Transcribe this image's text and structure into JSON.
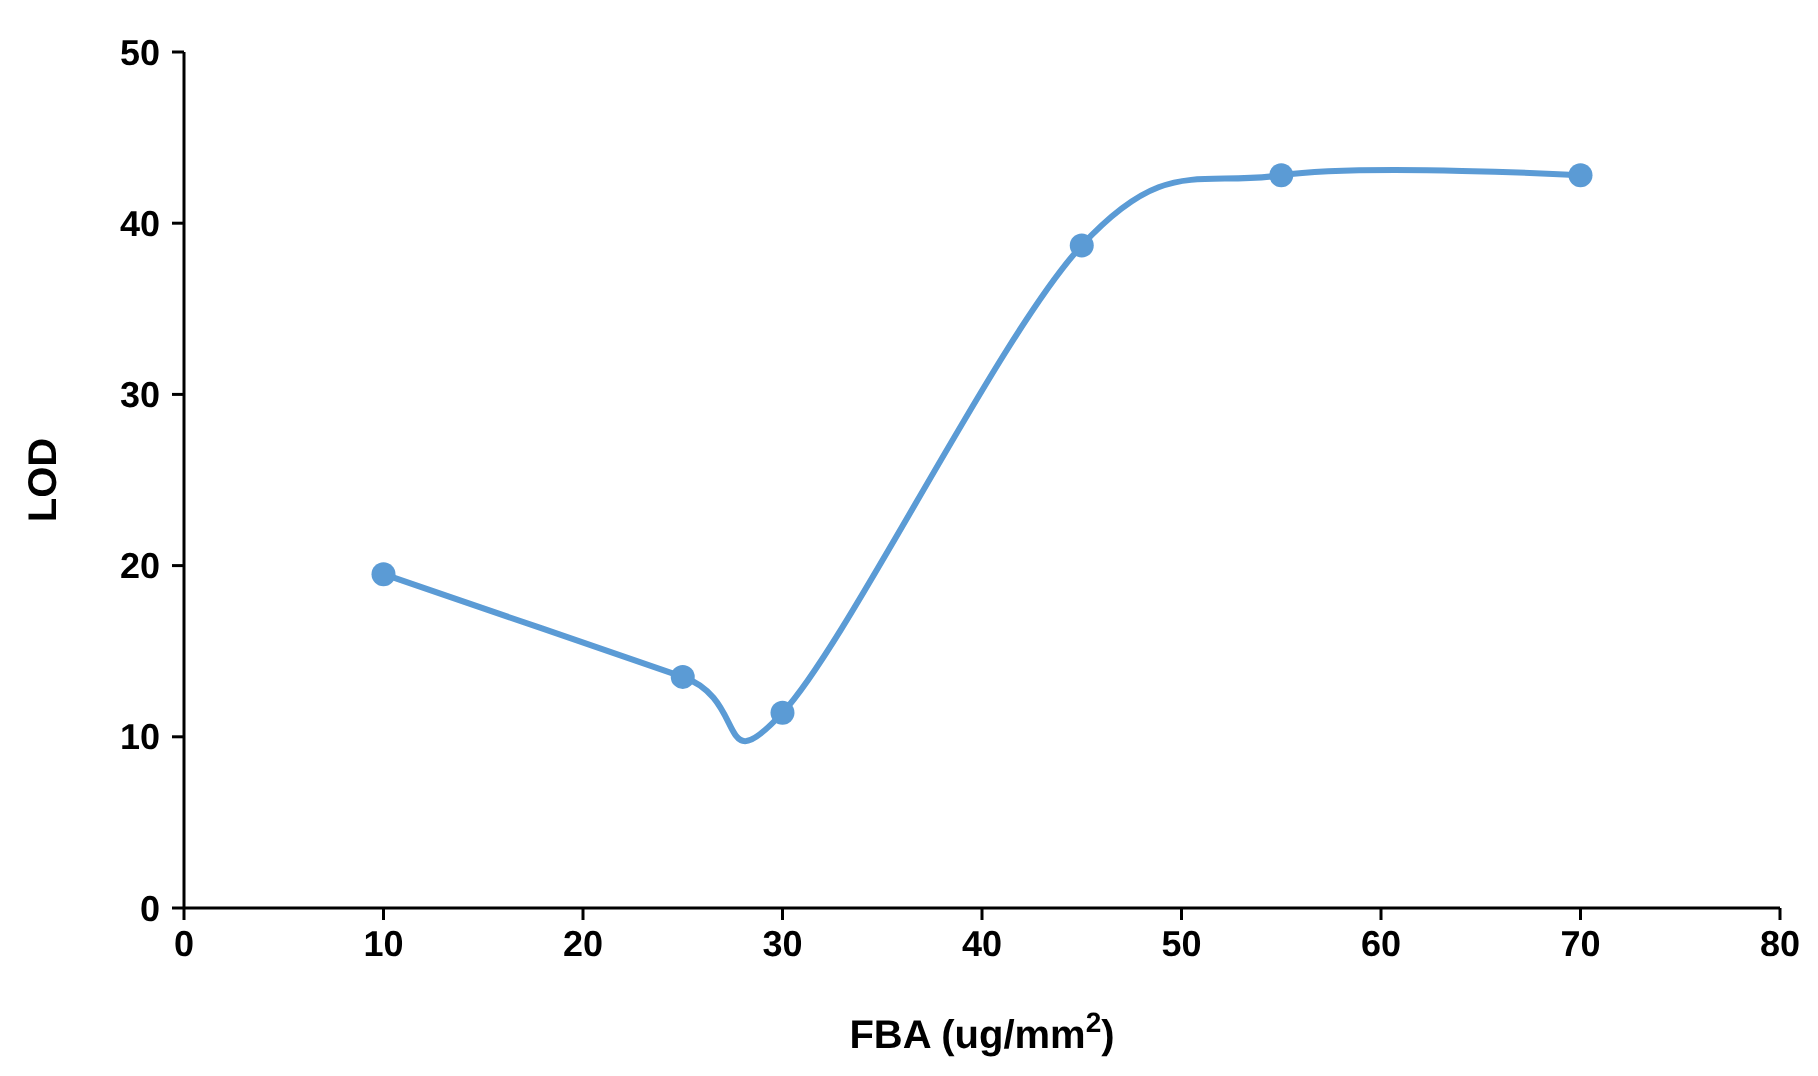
{
  "chart_data": {
    "type": "line",
    "xlabel": "FBA (ug/mm$^{2}$)",
    "ylabel": "LOD",
    "x": [
      10,
      25,
      30,
      45,
      55,
      70
    ],
    "series": [
      {
        "color": "#5b9bd5",
        "values": [
          19.5,
          13.5,
          11.4,
          38.7,
          42.8,
          42.8
        ]
      }
    ],
    "xlim": [
      0,
      80
    ],
    "xticks": [
      0,
      10,
      20,
      30,
      40,
      50,
      60,
      70,
      80
    ],
    "ylim": [
      0,
      50
    ],
    "yticks": [
      0,
      10,
      20,
      30,
      40,
      50
    ],
    "grid": false,
    "marker": "circle",
    "line_style": "solid"
  }
}
